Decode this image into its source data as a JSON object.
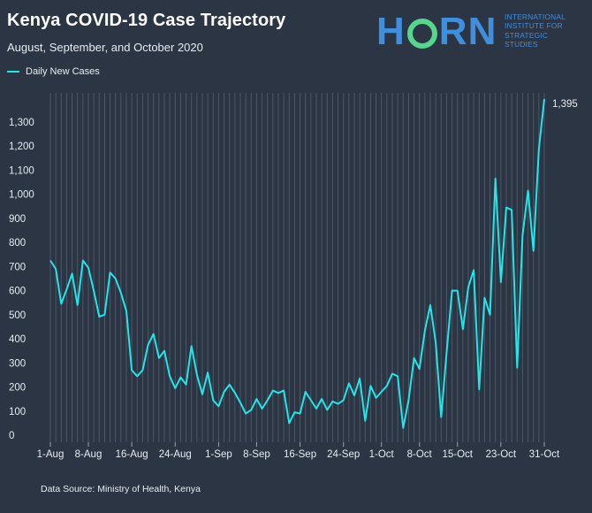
{
  "title": "Kenya COVID-19 Case Trajectory",
  "subtitle": "August, September, and October 2020",
  "source": "Data Source: Ministry of Health, Kenya",
  "logo": {
    "main": "HORN",
    "sub": "INTERNATIONAL\nINSTITUTE FOR\nSTRATEGIC\nSTUDIES"
  },
  "colors": {
    "background": "#2b3544",
    "line": "#22e6e8",
    "grid": "#4d5868",
    "logo_blue": "#3f8fdc",
    "logo_green": "#55d68c"
  },
  "chart_data": {
    "type": "line",
    "title": "Kenya COVID-19 Case Trajectory",
    "subtitle": "August, September, and October 2020",
    "legend": {
      "position": "top-left",
      "entries": [
        "Daily New Cases"
      ]
    },
    "grid": {
      "vertical": true,
      "horizontal": false
    },
    "ylim": [
      0,
      1395
    ],
    "yticks": [
      0,
      100,
      200,
      300,
      400,
      500,
      600,
      700,
      800,
      900,
      1000,
      1100,
      1200,
      1300
    ],
    "ytick_labels": [
      "0",
      "100",
      "200",
      "300",
      "400",
      "500",
      "600",
      "700",
      "800",
      "900",
      "1,000",
      "1,100",
      "1,200",
      "1,300"
    ],
    "x_start": "2020-08-01",
    "x_end": "2020-10-31",
    "xticks": [
      "2020-08-01",
      "2020-08-08",
      "2020-08-16",
      "2020-08-24",
      "2020-09-01",
      "2020-09-08",
      "2020-09-16",
      "2020-09-24",
      "2020-10-01",
      "2020-10-08",
      "2020-10-15",
      "2020-10-23",
      "2020-10-31"
    ],
    "xtick_labels": [
      "1-Aug",
      "8-Aug",
      "16-Aug",
      "24-Aug",
      "1-Sep",
      "8-Sep",
      "16-Sep",
      "24-Sep",
      "1-Oct",
      "8-Oct",
      "15-Oct",
      "23-Oct",
      "31-Oct"
    ],
    "end_label": "1,395",
    "series": [
      {
        "name": "Daily New Cases",
        "values": [
          725,
          690,
          545,
          605,
          670,
          540,
          725,
          695,
          600,
          492,
          500,
          675,
          650,
          590,
          515,
          270,
          245,
          270,
          375,
          420,
          320,
          350,
          245,
          195,
          240,
          210,
          370,
          250,
          170,
          260,
          145,
          120,
          180,
          210,
          175,
          135,
          90,
          105,
          150,
          110,
          145,
          185,
          175,
          185,
          50,
          95,
          90,
          180,
          145,
          110,
          150,
          105,
          140,
          130,
          145,
          215,
          165,
          235,
          60,
          205,
          155,
          180,
          205,
          255,
          245,
          30,
          145,
          320,
          275,
          435,
          540,
          385,
          75,
          340,
          600,
          600,
          440,
          615,
          685,
          190,
          570,
          500,
          1065,
          635,
          945,
          935,
          280,
          830,
          1015,
          765,
          1190,
          1395
        ]
      }
    ]
  }
}
